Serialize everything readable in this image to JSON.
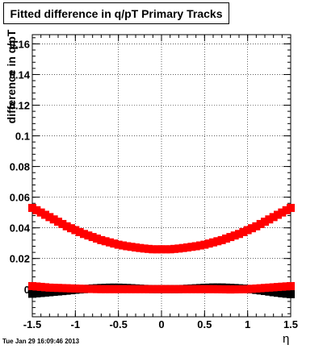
{
  "header": {
    "title": "Fitted difference in q/pT  Primary Tracks"
  },
  "footer": {
    "timestamp": "Tue Jan 29 16:09:46 2013"
  },
  "colors": {
    "series_red": "#ff0000",
    "series_black": "#000000",
    "grid": "#000000"
  },
  "chart_data": {
    "type": "scatter",
    "title": "Fitted difference in q/pT  Primary Tracks",
    "xlabel": "η",
    "ylabel": "difference in q/pT",
    "xlim": [
      -1.5,
      1.5
    ],
    "ylim": [
      -0.018,
      0.166
    ],
    "grid": true,
    "legend": "none",
    "xticks": [
      {
        "value": -1.5,
        "label": "-1.5"
      },
      {
        "value": -1.0,
        "label": "-1"
      },
      {
        "value": -0.5,
        "label": "-0.5"
      },
      {
        "value": 0.0,
        "label": "0"
      },
      {
        "value": 0.5,
        "label": "0.5"
      },
      {
        "value": 1.0,
        "label": "1"
      },
      {
        "value": 1.5,
        "label": "1.5"
      }
    ],
    "yticks": [
      {
        "value": 0.0,
        "label": "0"
      },
      {
        "value": 0.02,
        "label": "0.02"
      },
      {
        "value": 0.04,
        "label": "0.04"
      },
      {
        "value": 0.06,
        "label": "0.06"
      },
      {
        "value": 0.08,
        "label": "0.08"
      },
      {
        "value": 0.1,
        "label": "0.1"
      },
      {
        "value": 0.12,
        "label": "0.12"
      },
      {
        "value": 0.14,
        "label": "0.14"
      },
      {
        "value": 0.16,
        "label": "0.16"
      }
    ],
    "series": [
      {
        "color": "#ff0000",
        "x": [
          -1.5,
          -1.4,
          -1.3,
          -1.2,
          -1.1,
          -1.0,
          -0.9,
          -0.8,
          -0.7,
          -0.6,
          -0.5,
          -0.4,
          -0.3,
          -0.2,
          -0.1,
          0.0,
          0.1,
          0.2,
          0.3,
          0.4,
          0.5,
          0.6,
          0.7,
          0.8,
          0.9,
          1.0,
          1.1,
          1.2,
          1.3,
          1.4,
          1.5
        ],
        "y": [
          0.053,
          0.05,
          0.047,
          0.044,
          0.041,
          0.0385,
          0.036,
          0.034,
          0.032,
          0.0305,
          0.029,
          0.028,
          0.0272,
          0.0265,
          0.026,
          0.026,
          0.026,
          0.0265,
          0.0272,
          0.028,
          0.029,
          0.0305,
          0.032,
          0.034,
          0.036,
          0.0385,
          0.041,
          0.044,
          0.047,
          0.05,
          0.053
        ]
      },
      {
        "color": "#ff0000",
        "x": [
          -1.5,
          -1.4,
          -1.3,
          -1.2,
          -1.1,
          -1.0,
          -0.9,
          -0.8,
          -0.7,
          -0.6,
          -0.5,
          -0.4,
          -0.3,
          -0.2,
          -0.1,
          0.0,
          0.1,
          0.2,
          0.3,
          0.4,
          0.5,
          0.6,
          0.7,
          0.8,
          0.9,
          1.0,
          1.1,
          1.2,
          1.3,
          1.4,
          1.5
        ],
        "y": [
          0.002,
          0.0015,
          0.001,
          0.0008,
          0.0006,
          0.0004,
          0.0002,
          0.0001,
          0.0,
          0.0,
          0.0,
          0.0,
          0.0,
          0.0,
          0.0,
          0.0,
          0.0,
          0.0,
          0.0,
          0.0,
          0.0,
          0.0,
          -0.0001,
          -0.0002,
          -0.0001,
          0.0,
          0.0004,
          0.0008,
          0.0012,
          0.0016,
          0.002
        ]
      },
      {
        "color": "#000000",
        "x": [
          -1.5,
          -1.4,
          -1.3,
          -1.2,
          -1.1,
          -1.0,
          -0.9,
          -0.8,
          -0.7,
          -0.6,
          -0.5,
          -0.4,
          -0.3,
          -0.2,
          -0.1,
          0.0,
          0.1,
          0.2,
          0.3,
          0.4,
          0.5,
          0.6,
          0.7,
          0.8,
          0.9,
          1.0,
          1.1,
          1.2,
          1.3,
          1.4,
          1.5
        ],
        "y": [
          -0.003,
          -0.0025,
          -0.002,
          -0.0015,
          -0.001,
          -0.0004,
          0.0,
          0.0005,
          0.0008,
          0.001,
          0.001,
          0.0008,
          0.0005,
          0.0002,
          0.0,
          0.0,
          0.0,
          0.0,
          0.0003,
          0.0006,
          0.0009,
          0.0011,
          0.0011,
          0.0009,
          0.0006,
          0.0002,
          -0.0005,
          -0.0012,
          -0.002,
          -0.0027,
          -0.0033
        ]
      }
    ]
  }
}
